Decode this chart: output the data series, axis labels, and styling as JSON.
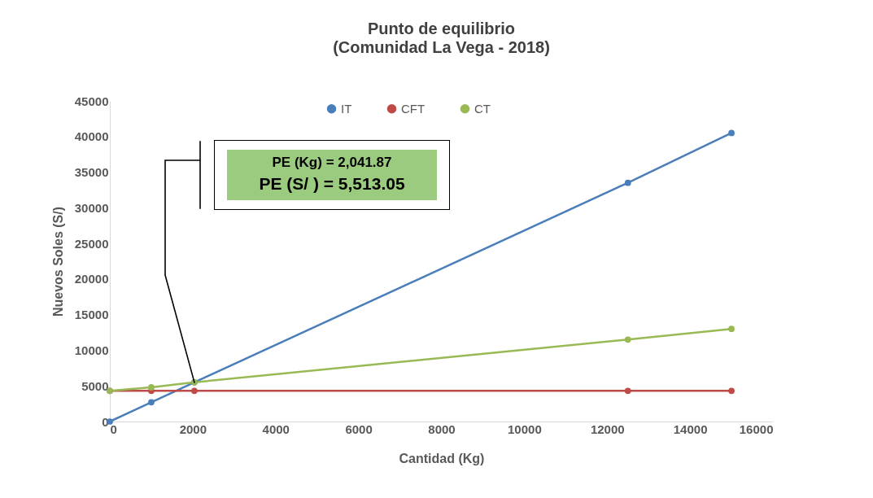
{
  "chart_data": {
    "type": "line",
    "title": "Punto de equilibrio",
    "subtitle": "(Comunidad La Vega - 2018)",
    "xlabel": "Cantidad (Kg)",
    "ylabel": "Nuevos Soles (S/)",
    "x": [
      0,
      1000,
      2040,
      12500,
      15000
    ],
    "series": [
      {
        "name": "IT",
        "color": "#4a7ebb",
        "values": [
          0,
          2700,
          5500,
          33500,
          40500
        ]
      },
      {
        "name": "CFT",
        "color": "#be4b48",
        "values": [
          4300,
          4300,
          4300,
          4300,
          4300
        ]
      },
      {
        "name": "CT",
        "color": "#98b954",
        "values": [
          4300,
          4800,
          5500,
          11500,
          13000
        ]
      }
    ],
    "xlim": [
      0,
      16000
    ],
    "xticks": [
      0,
      2000,
      4000,
      6000,
      8000,
      10000,
      12000,
      14000,
      16000
    ],
    "ylim": [
      0,
      45000
    ],
    "yticks": [
      0,
      5000,
      10000,
      15000,
      20000,
      25000,
      30000,
      35000,
      40000,
      45000
    ],
    "grid": false,
    "legend": "top",
    "marker": "circle",
    "line_style": "solid",
    "annotations": [
      "PE (Kg) = 2,041.87",
      "PE (S/ ) = 5,513.05"
    ]
  }
}
